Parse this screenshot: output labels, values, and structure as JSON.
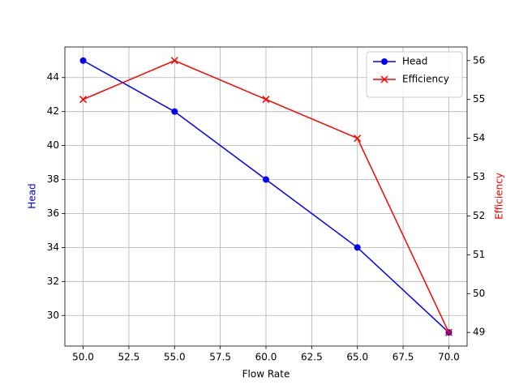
{
  "chart_data": {
    "type": "line",
    "x_label": "Flow Rate",
    "y_label": "Head",
    "y2_label": "Efficiency",
    "x": [
      50,
      55,
      60,
      65,
      70
    ],
    "series": [
      {
        "name": "Head",
        "color": "#0000ff",
        "marker": "o",
        "values": [
          45,
          42,
          38,
          34,
          29
        ]
      },
      {
        "name": "Efficiency",
        "color": "#ff0000",
        "marker": "x",
        "axis": "y2",
        "values": [
          55,
          56,
          55,
          54,
          49
        ]
      }
    ],
    "xlim": [
      49,
      71
    ],
    "xticks": [
      {
        "value": 50,
        "label": "50.0"
      },
      52.5,
      {
        "value": 55,
        "label": "55.0"
      },
      57.5,
      {
        "value": 60,
        "label": "60.0"
      },
      62.5,
      {
        "value": 65,
        "label": "65.0"
      },
      67.5,
      {
        "value": 70,
        "label": "70.0"
      }
    ],
    "ylim": [
      28.2,
      45.8
    ],
    "yticks": [
      30,
      32,
      34,
      36,
      38,
      40,
      42,
      44
    ],
    "y2lim": [
      48.65,
      56.35
    ],
    "y2ticks": [
      49,
      50,
      51,
      52,
      53,
      54,
      55,
      56
    ],
    "grid": true,
    "legend": "upper right"
  }
}
